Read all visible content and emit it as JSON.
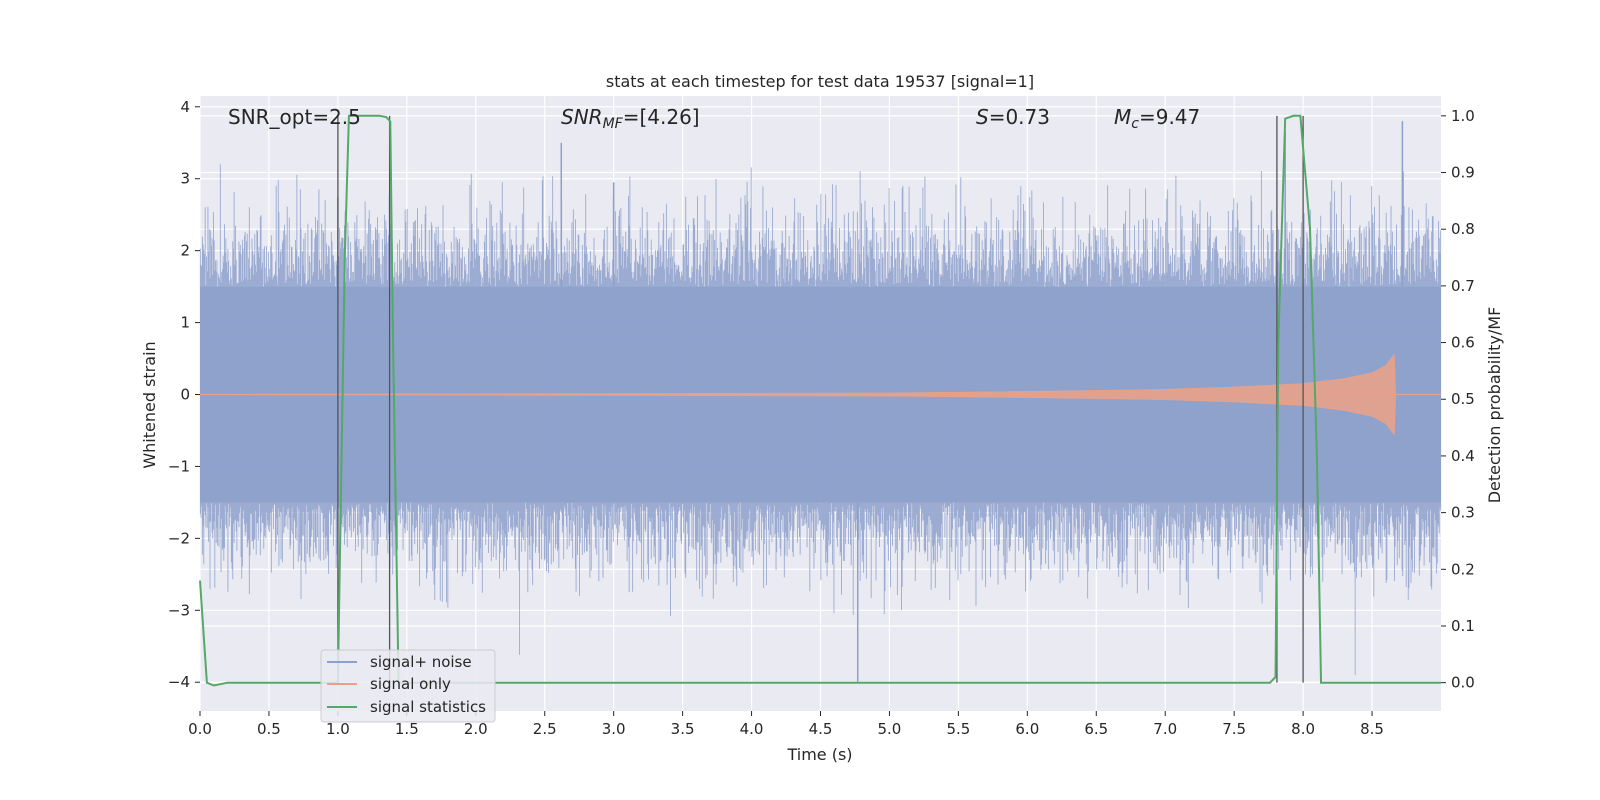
{
  "chart_data": {
    "type": "line",
    "title": "stats at each timestep for test data 19537 [signal=1]",
    "xlabel": "Time (s)",
    "ylabel": "Whitened strain",
    "y2label": "Detection probability/MF",
    "xlim": [
      0.0,
      9.0
    ],
    "ylim": [
      -4.4,
      4.15
    ],
    "y2lim": [
      -0.05,
      1.035
    ],
    "xticks": [
      0.0,
      0.5,
      1.0,
      1.5,
      2.0,
      2.5,
      3.0,
      3.5,
      4.0,
      4.5,
      5.0,
      5.5,
      6.0,
      6.5,
      7.0,
      7.5,
      8.0,
      8.5
    ],
    "xtick_labels": [
      "0.0",
      "0.5",
      "1.0",
      "1.5",
      "2.0",
      "2.5",
      "3.0",
      "3.5",
      "4.0",
      "4.5",
      "5.0",
      "5.5",
      "6.0",
      "6.5",
      "7.0",
      "7.5",
      "8.0",
      "8.5"
    ],
    "yticks": [
      4,
      3,
      2,
      1,
      0,
      -1,
      -2,
      -3,
      -4
    ],
    "ytick_labels": [
      "4",
      "3",
      "2",
      "1",
      "0",
      "−1",
      "−2",
      "−3",
      "−4"
    ],
    "y2ticks": [
      1.0,
      0.9,
      0.8,
      0.7,
      0.6,
      0.5,
      0.4,
      0.3,
      0.2,
      0.1,
      0.0
    ],
    "y2tick_labels": [
      "1.0",
      "0.9",
      "0.8",
      "0.7",
      "0.6",
      "0.5",
      "0.4",
      "0.3",
      "0.2",
      "0.1",
      "0.0"
    ],
    "grid": true,
    "legend_position": "lower-left",
    "annotations": {
      "snr_opt": "SNR_opt=2.5",
      "snr_mf_sym": "SNR",
      "snr_mf_sub": "MF",
      "snr_mf_val": "=[4.26]",
      "s_sym": "S",
      "s_val": "=0.73",
      "mc_sym": "M",
      "mc_sub": "c",
      "mc_val": "=9.47"
    },
    "series": [
      {
        "name": "signal+ noise",
        "color": "#8da0cb",
        "axis": "left",
        "description_values": {
          "band_min": -1.5,
          "band_max": 1.5,
          "peak_spikes": [
            [
              2.62,
              3.5
            ],
            [
              4.77,
              -4.0
            ],
            [
              7.87,
              3.65
            ],
            [
              8.72,
              3.8
            ],
            [
              1.0,
              2.75
            ],
            [
              3.0,
              2.95
            ]
          ]
        }
      },
      {
        "name": "signal only",
        "color": "#e8a189",
        "axis": "left",
        "envelope": [
          [
            0.0,
            0.0
          ],
          [
            5.0,
            0.02
          ],
          [
            6.0,
            0.04
          ],
          [
            7.0,
            0.07
          ],
          [
            7.5,
            0.1
          ],
          [
            8.0,
            0.15
          ],
          [
            8.3,
            0.22
          ],
          [
            8.5,
            0.3
          ],
          [
            8.6,
            0.4
          ],
          [
            8.66,
            0.55
          ],
          [
            8.67,
            0.0
          ]
        ]
      },
      {
        "name": "signal statistics",
        "color": "#55a868",
        "axis": "right",
        "x": [
          0.0,
          0.05,
          0.1,
          0.2,
          1.0,
          1.02,
          1.05,
          1.08,
          1.12,
          1.2,
          1.3,
          1.35,
          1.38,
          1.4,
          1.44,
          1.5,
          7.6,
          7.76,
          7.8,
          7.82,
          7.87,
          7.93,
          7.98,
          8.05,
          8.1,
          8.13,
          8.2,
          9.0
        ],
        "y": [
          0.18,
          0.0,
          -0.005,
          0.0,
          0.0,
          0.3,
          0.75,
          1.0,
          1.0,
          1.0,
          1.0,
          0.998,
          0.99,
          0.6,
          0.0,
          0.0,
          0.0,
          0.0,
          0.01,
          0.6,
          0.995,
          1.0,
          1.0,
          0.8,
          0.4,
          0.0,
          0.0,
          0.0
        ]
      }
    ],
    "vertical_lines": [
      1.0,
      1.375,
      7.81,
      8.0
    ]
  }
}
